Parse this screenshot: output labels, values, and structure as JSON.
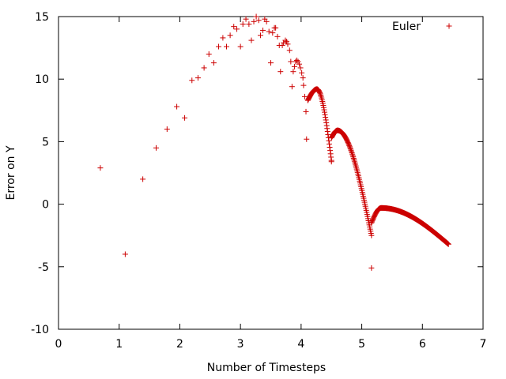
{
  "chart_data": {
    "type": "scatter",
    "xlabel": "Number of Timesteps",
    "ylabel": "Error on Y",
    "xlim": [
      0,
      7
    ],
    "ylim": [
      -10,
      15
    ],
    "xticks": [
      "0",
      "1",
      "2",
      "3",
      "4",
      "5",
      "6",
      "7"
    ],
    "yticks": [
      "-10",
      "-5",
      "0",
      "5",
      "10",
      "15"
    ],
    "grid": false,
    "legend_position": "top-right",
    "marker": "plus",
    "color": "#cc0000",
    "series": [
      {
        "name": "Euler",
        "points": [
          [
            0.69,
            2.9
          ],
          [
            1.1,
            -4.0
          ],
          [
            1.39,
            2.0
          ],
          [
            1.61,
            4.5
          ],
          [
            1.79,
            6.0
          ],
          [
            1.95,
            7.8
          ],
          [
            2.08,
            6.9
          ],
          [
            2.2,
            9.9
          ],
          [
            2.3,
            10.1
          ],
          [
            2.4,
            10.9
          ],
          [
            2.48,
            12.0
          ],
          [
            2.56,
            11.3
          ],
          [
            2.64,
            12.6
          ],
          [
            2.71,
            13.3
          ],
          [
            2.77,
            12.6
          ],
          [
            2.83,
            13.5
          ],
          [
            2.89,
            14.2
          ],
          [
            2.94,
            14.0
          ],
          [
            3.0,
            12.6
          ],
          [
            3.04,
            14.4
          ],
          [
            3.09,
            14.8
          ],
          [
            3.14,
            14.4
          ],
          [
            3.18,
            13.1
          ],
          [
            3.22,
            14.6
          ],
          [
            3.26,
            15.0
          ],
          [
            3.3,
            14.7
          ],
          [
            3.33,
            13.5
          ],
          [
            3.37,
            13.9
          ],
          [
            3.4,
            14.8
          ],
          [
            3.43,
            14.6
          ],
          [
            3.47,
            13.8
          ],
          [
            3.5,
            11.3
          ],
          [
            3.53,
            13.7
          ],
          [
            3.56,
            14.1
          ],
          [
            3.58,
            14.1
          ],
          [
            3.61,
            13.4
          ],
          [
            3.64,
            12.7
          ],
          [
            3.66,
            10.6
          ],
          [
            3.69,
            12.7
          ],
          [
            3.71,
            12.9
          ],
          [
            3.74,
            13.1
          ],
          [
            3.76,
            13.0
          ],
          [
            3.78,
            12.8
          ],
          [
            3.81,
            12.3
          ],
          [
            3.83,
            11.4
          ],
          [
            3.85,
            9.4
          ],
          [
            3.87,
            10.6
          ],
          [
            3.89,
            11.0
          ],
          [
            3.91,
            11.4
          ],
          [
            3.93,
            11.5
          ],
          [
            3.95,
            11.4
          ],
          [
            3.97,
            11.2
          ],
          [
            3.99,
            10.9
          ],
          [
            4.01,
            10.5
          ],
          [
            4.03,
            10.1
          ],
          [
            4.04,
            9.5
          ],
          [
            4.06,
            8.6
          ],
          [
            4.08,
            7.4
          ],
          [
            4.09,
            5.2
          ]
        ],
        "curve_segments": [
          {
            "t_from": 4.11,
            "t_to": 4.5,
            "peak_x": 4.26,
            "peak_y": 9.2,
            "start_y": 8.3,
            "end_y": 3.5
          },
          {
            "t_from": 4.5,
            "t_to": 5.16,
            "peak_x": 4.6,
            "peak_y": 5.9,
            "start_y": 5.3,
            "end_y": -2.5
          },
          {
            "t_from": 5.16,
            "t_to": 6.43,
            "peak_x": 5.32,
            "peak_y": -0.3,
            "start_y": -1.5,
            "end_y": -3.2
          }
        ],
        "extra_points": [
          [
            4.5,
            3.4
          ],
          [
            5.16,
            -5.1
          ]
        ]
      }
    ]
  }
}
